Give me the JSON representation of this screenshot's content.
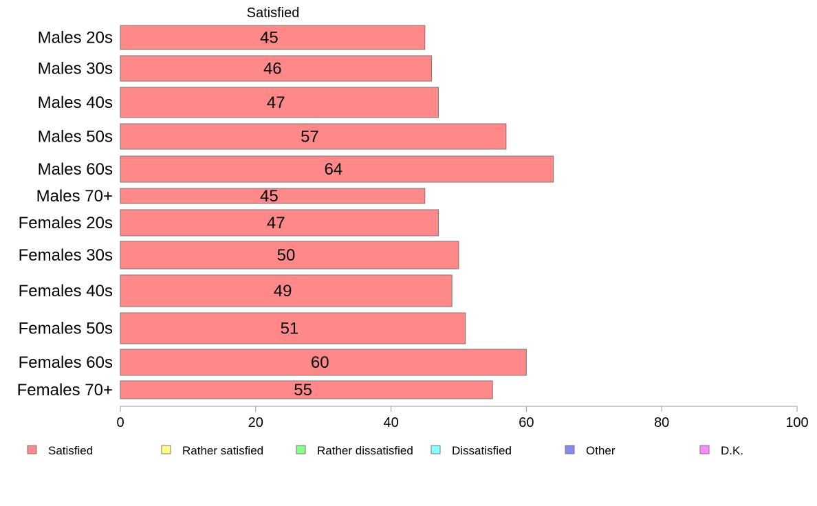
{
  "chart_data": {
    "type": "bar",
    "orientation": "horizontal",
    "series_header": "Satisfied",
    "categories": [
      "Males 20s",
      "Males 30s",
      "Males 40s",
      "Males 50s",
      "Males 60s",
      "Males 70+",
      "Females 20s",
      "Females 30s",
      "Females 40s",
      "Females 50s",
      "Females 60s",
      "Females 70+"
    ],
    "series": [
      {
        "name": "Satisfied",
        "color": "#ff8888",
        "values": [
          45,
          46,
          47,
          57,
          64,
          45,
          47,
          50,
          49,
          51,
          60,
          55
        ]
      }
    ],
    "xlim": [
      0,
      100
    ],
    "xticks": [
      0,
      20,
      40,
      60,
      80,
      100
    ],
    "grid": false,
    "legend_placement": "bottom",
    "legend": [
      {
        "label": "Satisfied",
        "color": "#ff8888"
      },
      {
        "label": "Rather satisfied",
        "color": "#ffff88"
      },
      {
        "label": "Rather dissatisfied",
        "color": "#88ff88"
      },
      {
        "label": "Dissatisfied",
        "color": "#88ffff"
      },
      {
        "label": "Other",
        "color": "#8888ee"
      },
      {
        "label": "D.K.",
        "color": "#ff88ff"
      }
    ]
  }
}
